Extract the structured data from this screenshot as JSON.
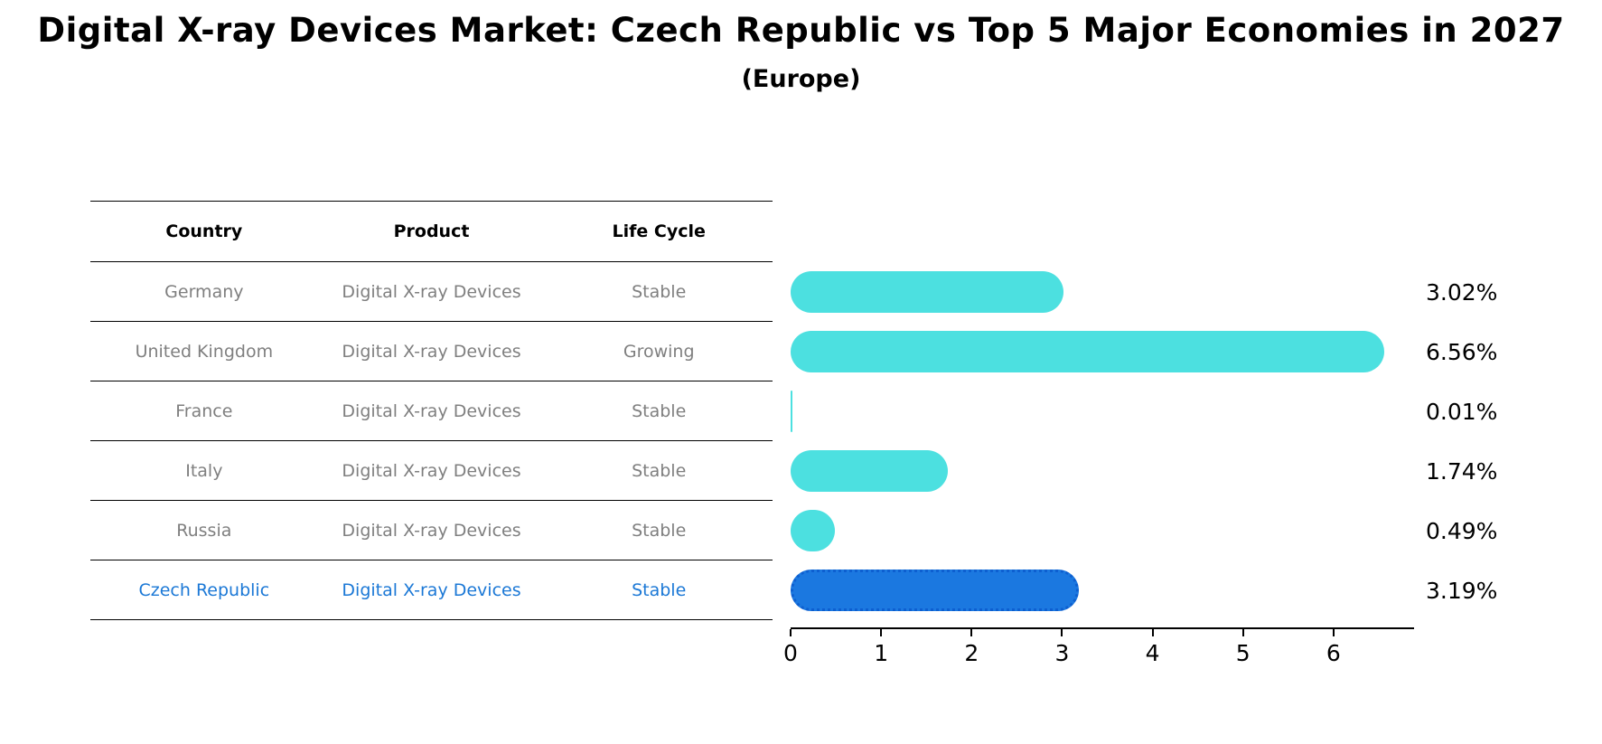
{
  "title": "Digital X-ray Devices Market: Czech Republic vs Top 5 Major Economies in 2027",
  "subtitle": "(Europe)",
  "table": {
    "headers": {
      "country": "Country",
      "product": "Product",
      "life_cycle": "Life Cycle"
    },
    "rows": [
      {
        "country": "Germany",
        "product": "Digital X-ray Devices",
        "life_cycle": "Stable"
      },
      {
        "country": "United Kingdom",
        "product": "Digital X-ray Devices",
        "life_cycle": "Growing"
      },
      {
        "country": "France",
        "product": "Digital X-ray Devices",
        "life_cycle": "Stable"
      },
      {
        "country": "Italy",
        "product": "Digital X-ray Devices",
        "life_cycle": "Stable"
      },
      {
        "country": "Russia",
        "product": "Digital X-ray Devices",
        "life_cycle": "Stable"
      },
      {
        "country": "Czech Republic",
        "product": "Digital X-ray Devices",
        "life_cycle": "Stable"
      }
    ]
  },
  "chart_data": {
    "type": "bar",
    "orientation": "horizontal",
    "title": "Digital X-ray Devices Market: Czech Republic vs Top 5 Major Economies in 2027 (Europe)",
    "categories": [
      "Germany",
      "United Kingdom",
      "France",
      "Italy",
      "Russia",
      "Czech Republic"
    ],
    "values": [
      3.02,
      6.56,
      0.01,
      1.74,
      0.49,
      3.19
    ],
    "value_labels": [
      "3.02%",
      "6.56%",
      "0.01%",
      "1.74%",
      "0.49%",
      "3.19%"
    ],
    "xlabel": "",
    "ylabel": "",
    "xlim": [
      0,
      6.89
    ],
    "xticks": [
      0,
      1,
      2,
      3,
      4,
      5,
      6
    ],
    "grid": false,
    "legend": false,
    "highlight_index": 5,
    "colors": {
      "bar_default": "#4ce0e0",
      "bar_highlight": "#1b78e0",
      "bar_highlight_border": "#0d5fd0",
      "highlight_text": "#1b78d6",
      "row_text": "#7f7f7f",
      "header_text": "#000000"
    }
  }
}
